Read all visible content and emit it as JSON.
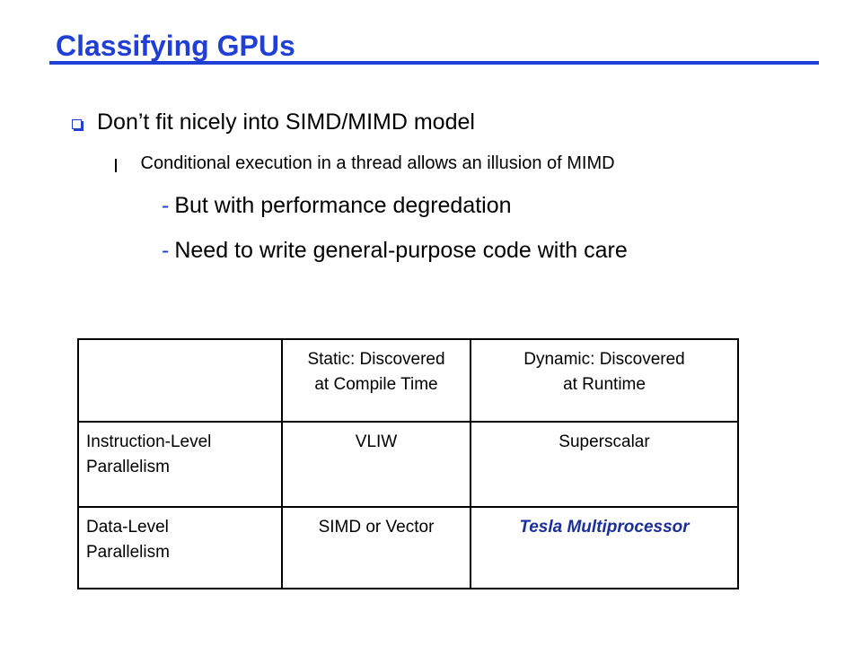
{
  "slide": {
    "title": "Classifying GPUs",
    "bullet1": "Don’t fit nicely into SIMD/MIMD model",
    "bullet2": "Conditional execution in a thread allows an illusion of MIMD",
    "dash_marker": "-",
    "dash_items": [
      "But with performance degredation",
      "Need to write general-purpose code with care"
    ]
  },
  "table": {
    "headers": [
      "",
      "Static: Discovered at Compile Time",
      "Dynamic: Discovered at Runtime"
    ],
    "header_lines": [
      [
        "Static: Discovered",
        "at Compile Time"
      ],
      [
        "Dynamic: Discovered",
        "at Runtime"
      ]
    ],
    "rows": [
      {
        "label_lines": [
          "Instruction-Level",
          "Parallelism"
        ],
        "static": "VLIW",
        "dynamic": "Superscalar"
      },
      {
        "label_lines": [
          "Data-Level",
          "Parallelism"
        ],
        "static": "SIMD or Vector",
        "dynamic": "Tesla Multiprocessor"
      }
    ]
  },
  "colors": {
    "accent": "#1f3fd6",
    "highlight": "#1a2f99"
  },
  "icons": {
    "bullet1": "square-bullet-icon",
    "bullet2": "l-bullet-icon"
  }
}
